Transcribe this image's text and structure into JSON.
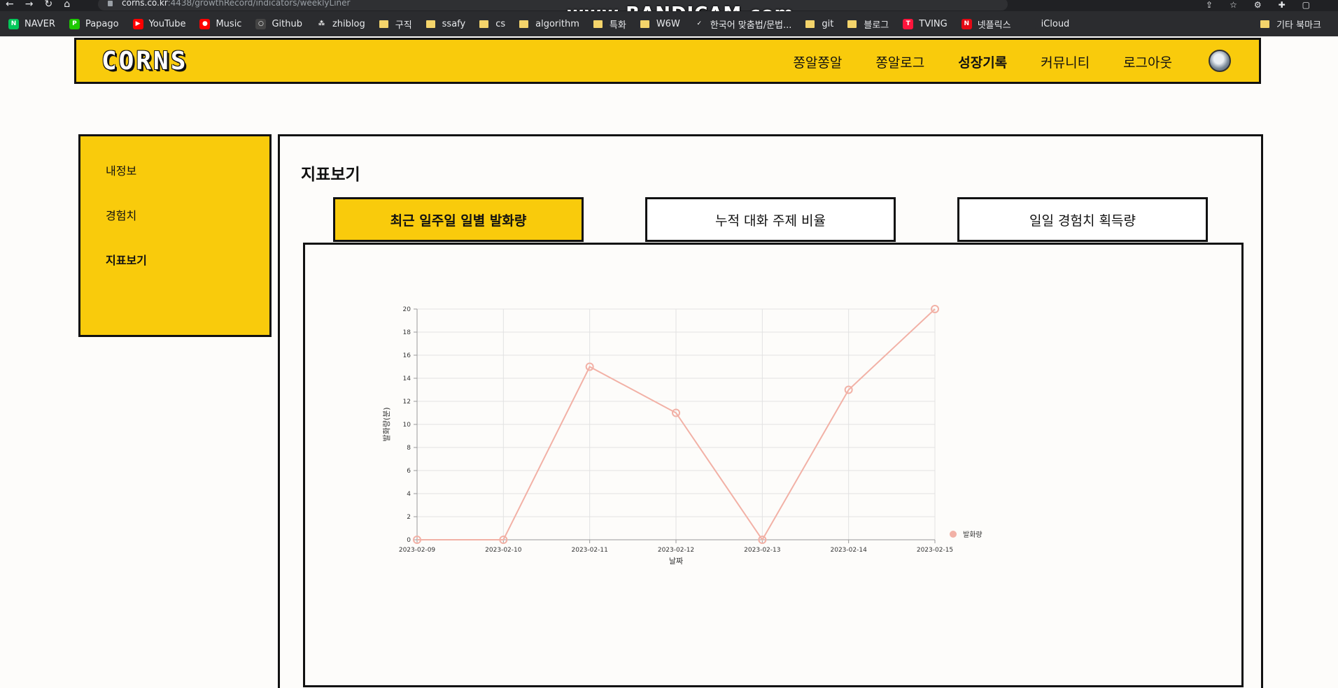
{
  "browser": {
    "url_host": "corns.co.kr",
    "url_path": ":4438/growthRecord/indicators/weeklyLiner",
    "watermark": "www.BANDICAM.com",
    "bookmarks": [
      {
        "label": "NAVER",
        "icon": "naver-icon",
        "color": "#03c75a",
        "glyph": "N"
      },
      {
        "label": "Papago",
        "icon": "papago-icon",
        "color": "#1ec800",
        "glyph": "P"
      },
      {
        "label": "YouTube",
        "icon": "youtube-icon",
        "color": "#ff0000",
        "glyph": "▶"
      },
      {
        "label": "Music",
        "icon": "music-icon",
        "color": "#ff0000",
        "glyph": "●"
      },
      {
        "label": "Github",
        "icon": "github-icon",
        "color": "#444",
        "glyph": "○"
      },
      {
        "label": "zhiblog",
        "icon": "zhiblog-icon",
        "color": "#2b2c2f",
        "glyph": "⁂"
      },
      {
        "label": "구직",
        "icon": "folder-icon"
      },
      {
        "label": "ssafy",
        "icon": "folder-icon"
      },
      {
        "label": "cs",
        "icon": "folder-icon"
      },
      {
        "label": "algorithm",
        "icon": "folder-icon"
      },
      {
        "label": "특화",
        "icon": "folder-icon"
      },
      {
        "label": "W6W",
        "icon": "folder-icon"
      },
      {
        "label": "한국어 맞춤법/문법...",
        "icon": "spellcheck-icon",
        "color": "#2b2c2f",
        "glyph": "✓"
      },
      {
        "label": "git",
        "icon": "folder-icon"
      },
      {
        "label": "블로그",
        "icon": "folder-icon"
      },
      {
        "label": "TVING",
        "icon": "tving-icon",
        "color": "#ff153c",
        "glyph": "T"
      },
      {
        "label": "넷플릭스",
        "icon": "netflix-icon",
        "color": "#e50914",
        "glyph": "N"
      },
      {
        "label": "iCloud",
        "icon": "apple-icon",
        "color": "#2b2c2f",
        "glyph": ""
      }
    ],
    "other_bookmarks": "기타 북마크"
  },
  "header": {
    "logo": "CORNS",
    "nav": [
      {
        "label": "쫑알쫑알",
        "active": false
      },
      {
        "label": "쫑알로그",
        "active": false
      },
      {
        "label": "성장기록",
        "active": true
      },
      {
        "label": "커뮤니티",
        "active": false
      },
      {
        "label": "로그아웃",
        "active": false
      }
    ]
  },
  "sidebar": {
    "items": [
      {
        "label": "내정보",
        "active": false
      },
      {
        "label": "경험치",
        "active": false
      },
      {
        "label": "지표보기",
        "active": true
      }
    ]
  },
  "main": {
    "title": "지표보기",
    "tabs": [
      {
        "label": "최근 일주일 일별 발화량",
        "active": true
      },
      {
        "label": "누적 대화 주제 비율",
        "active": false
      },
      {
        "label": "일일 경험치 획득량",
        "active": false
      }
    ]
  },
  "colors": {
    "accent": "#f9cb0c",
    "line": "#f2b1a6"
  },
  "chart_data": {
    "type": "line",
    "x": [
      "2023-02-09",
      "2023-02-10",
      "2023-02-11",
      "2023-02-12",
      "2023-02-13",
      "2023-02-14",
      "2023-02-15"
    ],
    "series": [
      {
        "name": "발화량",
        "values": [
          0,
          0,
          15,
          11,
          0,
          13,
          20
        ]
      }
    ],
    "xlabel": "날짜",
    "ylabel": "발화량(분)",
    "ylim": [
      0,
      20
    ],
    "yticks": [
      0,
      2,
      4,
      6,
      8,
      10,
      12,
      14,
      16,
      18,
      20
    ],
    "grid": true,
    "legend": "bottom-right"
  }
}
